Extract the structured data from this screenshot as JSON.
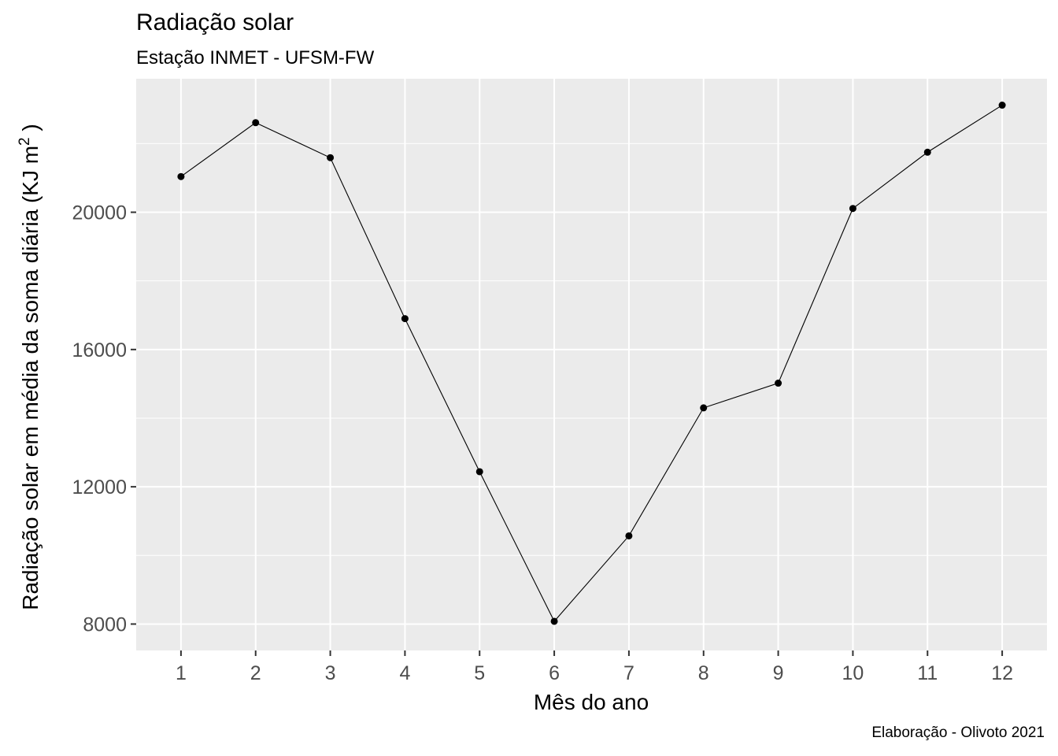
{
  "chart_data": {
    "type": "line",
    "title": "Radiação solar",
    "subtitle": "Estação INMET - UFSM-FW",
    "caption": "Elaboração - Olivoto 2021",
    "xlabel": "Mês do ano",
    "ylabel_prefix": "Radiação solar em média da soma diária (KJ m",
    "ylabel_sup": "2",
    "ylabel_suffix": " )",
    "x": [
      1,
      2,
      3,
      4,
      5,
      6,
      7,
      8,
      9,
      10,
      11,
      12
    ],
    "series": [
      {
        "values": [
          21040,
          22610,
          21590,
          16900,
          12440,
          8080,
          10570,
          14300,
          15020,
          20110,
          21750,
          23120
        ]
      }
    ],
    "x_ticks": [
      1,
      2,
      3,
      4,
      5,
      6,
      7,
      8,
      9,
      10,
      11,
      12
    ],
    "y_ticks": [
      8000,
      12000,
      16000,
      20000
    ],
    "xlim": [
      0.4,
      12.6
    ],
    "ylim": [
      7230,
      23890
    ],
    "grid": true,
    "colors": {
      "panel": "#ebebeb",
      "grid": "#ffffff",
      "line": "#000000"
    }
  }
}
